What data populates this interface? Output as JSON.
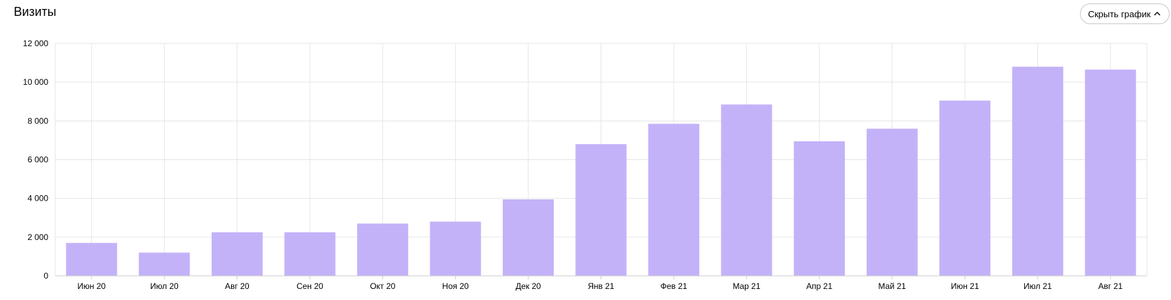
{
  "header": {
    "title": "Визиты",
    "toggle_label": "Скрыть график",
    "toggle_icon": "chevron-up-icon"
  },
  "colors": {
    "bar": "#c4b2f9",
    "grid": "#e6e6e6",
    "axis": "#cccccc"
  },
  "chart_data": {
    "type": "bar",
    "categories": [
      "Июн 20",
      "Июл 20",
      "Авг 20",
      "Сен 20",
      "Окт 20",
      "Ноя 20",
      "Дек 20",
      "Янв 21",
      "Фев 21",
      "Мар 21",
      "Апр 21",
      "Май 21",
      "Июн 21",
      "Июл 21",
      "Авг 21"
    ],
    "values": [
      1700,
      1200,
      2250,
      2250,
      2700,
      2800,
      3950,
      6800,
      7850,
      8850,
      6950,
      7600,
      9050,
      10800,
      10650
    ],
    "yticks": [
      "12 000",
      "10 000",
      "8 000",
      "6 000",
      "4 000",
      "2 000",
      "0"
    ],
    "ylim": [
      0,
      12000
    ],
    "grid": true
  }
}
